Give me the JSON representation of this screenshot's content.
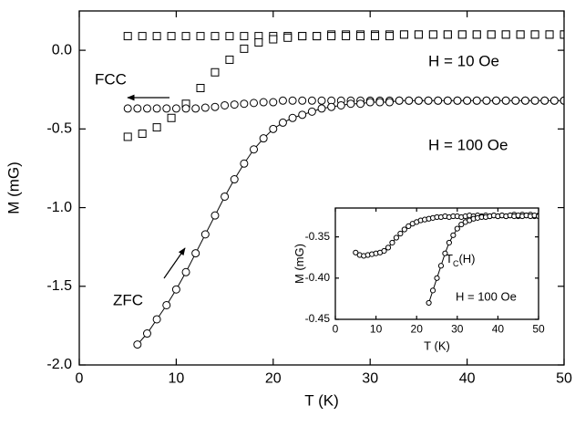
{
  "chart_data": [
    {
      "type": "scatter",
      "xlabel": "T (K)",
      "ylabel": "M (mG)",
      "xlim": [
        0,
        50
      ],
      "xticks": [
        0,
        10,
        20,
        30,
        40,
        50
      ],
      "ylim": [
        -2.0,
        0.25
      ],
      "yticks": [
        {
          "value": 0,
          "label": "0.0"
        },
        -0.5,
        {
          "value": -1,
          "label": "-1.0"
        },
        -1.5,
        {
          "value": -2,
          "label": "-2.0"
        }
      ],
      "annotations": [
        "FCC",
        "H = 10 Oe",
        "H = 100 Oe",
        "ZFC"
      ],
      "series": [
        {
          "color": "#000000",
          "marker": "square",
          "line": false,
          "x": [
            5,
            6.5,
            8,
            9.5,
            11,
            12.5,
            14,
            15.5,
            17,
            18.5,
            20,
            21.5,
            23,
            24.5,
            26,
            27.5,
            29,
            30.5,
            32,
            33.5,
            35,
            36.5,
            38,
            39.5,
            41,
            42.5,
            44,
            45.5,
            47,
            48.5,
            50
          ],
          "values": [
            0.09,
            0.09,
            0.09,
            0.09,
            0.09,
            0.09,
            0.09,
            0.09,
            0.09,
            0.09,
            0.09,
            0.09,
            0.09,
            0.09,
            0.1,
            0.1,
            0.1,
            0.1,
            0.1,
            0.1,
            0.1,
            0.1,
            0.1,
            0.1,
            0.1,
            0.1,
            0.1,
            0.1,
            0.1,
            0.1,
            0.1
          ]
        },
        {
          "color": "#000000",
          "marker": "square",
          "line": false,
          "x": [
            5,
            6.5,
            8,
            9.5,
            11,
            12.5,
            14,
            15.5,
            17,
            18.5,
            20,
            21.5,
            23,
            24.5,
            26,
            27.5,
            29,
            30.5,
            32,
            33.5,
            35,
            36.5,
            38,
            39.5,
            41,
            42.5,
            44,
            45.5,
            47,
            48.5,
            50
          ],
          "values": [
            -0.55,
            -0.53,
            -0.49,
            -0.43,
            -0.34,
            -0.24,
            -0.14,
            -0.06,
            0.01,
            0.05,
            0.07,
            0.08,
            0.09,
            0.09,
            0.09,
            0.09,
            0.09,
            0.09,
            0.09,
            0.1,
            0.1,
            0.1,
            0.1,
            0.1,
            0.1,
            0.1,
            0.1,
            0.1,
            0.1,
            0.1,
            0.1
          ]
        },
        {
          "color": "#000000",
          "marker": "circle",
          "line": false,
          "x": [
            5,
            6,
            7,
            8,
            9,
            10,
            11,
            12,
            13,
            14,
            15,
            16,
            17,
            18,
            19,
            20,
            21,
            22,
            23,
            24,
            25,
            26,
            27,
            28,
            29,
            30,
            31,
            32,
            33,
            34,
            35,
            36,
            37,
            38,
            39,
            40,
            41,
            42,
            43,
            44,
            45,
            46,
            47,
            48,
            49,
            50
          ],
          "values": [
            -0.37,
            -0.37,
            -0.37,
            -0.37,
            -0.37,
            -0.37,
            -0.37,
            -0.37,
            -0.365,
            -0.36,
            -0.35,
            -0.345,
            -0.34,
            -0.335,
            -0.33,
            -0.33,
            -0.32,
            -0.32,
            -0.32,
            -0.32,
            -0.32,
            -0.32,
            -0.32,
            -0.32,
            -0.32,
            -0.32,
            -0.32,
            -0.32,
            -0.32,
            -0.32,
            -0.32,
            -0.32,
            -0.32,
            -0.32,
            -0.32,
            -0.32,
            -0.32,
            -0.32,
            -0.32,
            -0.32,
            -0.32,
            -0.32,
            -0.32,
            -0.32,
            -0.32,
            -0.32
          ]
        },
        {
          "color": "#000000",
          "marker": "circle",
          "line": true,
          "x": [
            6,
            7,
            8,
            9,
            10,
            11,
            12,
            13,
            14,
            15,
            16,
            17,
            18,
            19,
            20,
            21,
            22,
            23,
            24,
            25,
            26,
            27,
            28,
            29,
            30,
            31,
            32,
            33,
            34,
            35,
            36,
            37,
            38,
            39,
            40,
            41,
            42,
            43,
            44,
            45,
            46,
            47,
            48,
            49,
            50
          ],
          "values": [
            -1.87,
            -1.8,
            -1.71,
            -1.62,
            -1.52,
            -1.41,
            -1.29,
            -1.17,
            -1.05,
            -0.93,
            -0.82,
            -0.72,
            -0.63,
            -0.56,
            -0.5,
            -0.46,
            -0.43,
            -0.41,
            -0.39,
            -0.37,
            -0.36,
            -0.35,
            -0.34,
            -0.34,
            -0.33,
            -0.33,
            -0.33,
            -0.32,
            -0.32,
            -0.32,
            -0.32,
            -0.32,
            -0.32,
            -0.32,
            -0.32,
            -0.32,
            -0.32,
            -0.32,
            -0.32,
            -0.32,
            -0.32,
            -0.32,
            -0.32,
            -0.32,
            -0.32
          ]
        }
      ]
    },
    {
      "type": "scatter",
      "xlabel": "T (K)",
      "ylabel": "M (mG)",
      "xlim": [
        0,
        50
      ],
      "xticks": [
        0,
        10,
        20,
        30,
        40,
        50
      ],
      "ylim": [
        -0.45,
        -0.315
      ],
      "yticks": [
        -0.35,
        {
          "value": -0.4,
          "label": "-0.40"
        },
        -0.45
      ],
      "annotations": [
        "H = 100 Oe"
      ],
      "tc_label": [
        "T",
        "C",
        "(H)"
      ],
      "series": [
        {
          "color": "#000000",
          "marker": "circle",
          "line": true,
          "x": [
            5,
            6,
            7,
            8,
            9,
            10,
            11,
            12,
            13,
            14,
            15,
            16,
            17,
            18,
            19,
            20,
            21,
            22,
            23,
            24,
            25,
            26,
            27,
            28,
            29,
            30,
            31,
            32,
            33,
            34,
            35,
            36,
            37,
            38,
            39,
            40,
            41,
            42,
            43,
            44,
            45,
            46,
            47,
            48,
            49,
            50
          ],
          "values": [
            -0.369,
            -0.372,
            -0.373,
            -0.372,
            -0.371,
            -0.37,
            -0.369,
            -0.367,
            -0.363,
            -0.357,
            -0.351,
            -0.346,
            -0.341,
            -0.337,
            -0.334,
            -0.332,
            -0.33,
            -0.329,
            -0.328,
            -0.327,
            -0.326,
            -0.326,
            -0.325,
            -0.326,
            -0.325,
            -0.325,
            -0.326,
            -0.325,
            -0.324,
            -0.325,
            -0.324,
            -0.325,
            -0.324,
            -0.325,
            -0.324,
            -0.325,
            -0.324,
            -0.325,
            -0.324,
            -0.323,
            -0.325,
            -0.323,
            -0.324,
            -0.323,
            -0.325,
            -0.324
          ]
        },
        {
          "color": "#000000",
          "marker": "circle",
          "line": true,
          "x": [
            23,
            24,
            25,
            26,
            27,
            28,
            29,
            30,
            31,
            32,
            33,
            34,
            35,
            36,
            37,
            38,
            39,
            40,
            41,
            42,
            43,
            44,
            45,
            46,
            47,
            48,
            49,
            50
          ],
          "values": [
            -0.43,
            -0.415,
            -0.4,
            -0.385,
            -0.37,
            -0.357,
            -0.348,
            -0.34,
            -0.335,
            -0.332,
            -0.33,
            -0.328,
            -0.327,
            -0.326,
            -0.326,
            -0.325,
            -0.324,
            -0.325,
            -0.324,
            -0.325,
            -0.324,
            -0.325,
            -0.324,
            -0.325,
            -0.324,
            -0.325,
            -0.324,
            -0.325
          ]
        }
      ]
    }
  ]
}
